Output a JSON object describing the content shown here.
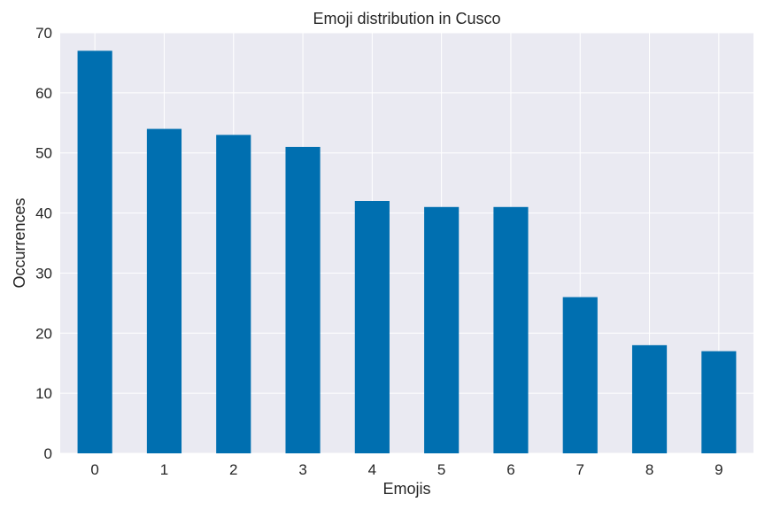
{
  "colors": {
    "plot_background": "#eaeaf2",
    "grid": "#ffffff",
    "bar": "#006fb0",
    "text": "#262626"
  },
  "chart_data": {
    "type": "bar",
    "title": "Emoji distribution in Cusco",
    "xlabel": "Emojis",
    "ylabel": "Occurrences",
    "categories": [
      "0",
      "1",
      "2",
      "3",
      "4",
      "5",
      "6",
      "7",
      "8",
      "9"
    ],
    "values": [
      67,
      54,
      53,
      51,
      42,
      41,
      41,
      26,
      18,
      17
    ],
    "ylim": [
      0,
      70
    ],
    "yticks": [
      0,
      10,
      20,
      30,
      40,
      50,
      60,
      70
    ],
    "grid": true,
    "legend": "none"
  }
}
